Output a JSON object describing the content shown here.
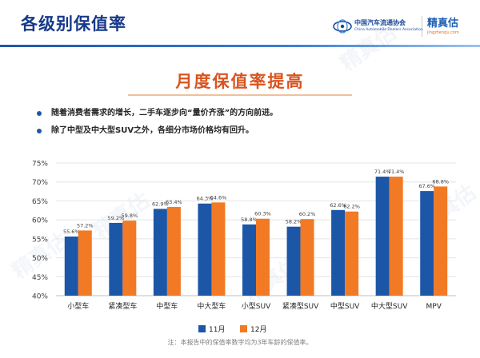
{
  "header": {
    "title": "各级别保值率",
    "logo_caada_cn": "中国汽车流通协会",
    "logo_caada_en": "China Automobile Dealers Association",
    "logo_jzg_cn": "精真估",
    "logo_jzg_url": "jingzhengu.com",
    "accent_color": "#17398a"
  },
  "section": {
    "title": "月度保值率提高",
    "title_color": "#d9541f"
  },
  "bullets": [
    "随着消费者需求的增长，二手车逐步向“量价齐涨”的方向前进。",
    "除了中型及中大型SUV之外，各细分市场价格均有回升。"
  ],
  "watermark": "精真估",
  "chart_data": {
    "type": "bar",
    "categories": [
      "小型车",
      "紧凑型车",
      "中型车",
      "中大型车",
      "小型SUV",
      "紧凑型SUV",
      "中型SUV",
      "中大型SUV",
      "MPV"
    ],
    "series": [
      {
        "name": "11月",
        "color": "#1c56a7",
        "values": [
          55.6,
          59.2,
          62.9,
          64.3,
          58.8,
          58.2,
          62.6,
          71.4,
          67.6
        ]
      },
      {
        "name": "12月",
        "color": "#f27a24",
        "values": [
          57.2,
          59.8,
          63.4,
          64.6,
          60.3,
          60.2,
          62.2,
          71.4,
          68.8
        ]
      }
    ],
    "value_labels": [
      [
        "55.6%",
        "59.2%",
        "62.9%",
        "64.3%",
        "58.8%",
        "58.2%",
        "62.6%",
        "71.4%",
        "67.6%"
      ],
      [
        "57.2%",
        "59.8%",
        "63.4%",
        "64.6%",
        "60.3%",
        "60.2%",
        "62.2%",
        "71.4%",
        "68.8%"
      ]
    ],
    "ylim": [
      40,
      75
    ],
    "yticks": [
      40,
      45,
      50,
      55,
      60,
      65,
      70,
      75
    ],
    "ytick_labels": [
      "40%",
      "45%",
      "50%",
      "55%",
      "60%",
      "65%",
      "70%",
      "75%"
    ],
    "grid": true,
    "legend_position": "bottom",
    "xlabel": "",
    "ylabel": "",
    "note": "注：本报告中的保值率数字均为3年车龄的保值率。"
  }
}
